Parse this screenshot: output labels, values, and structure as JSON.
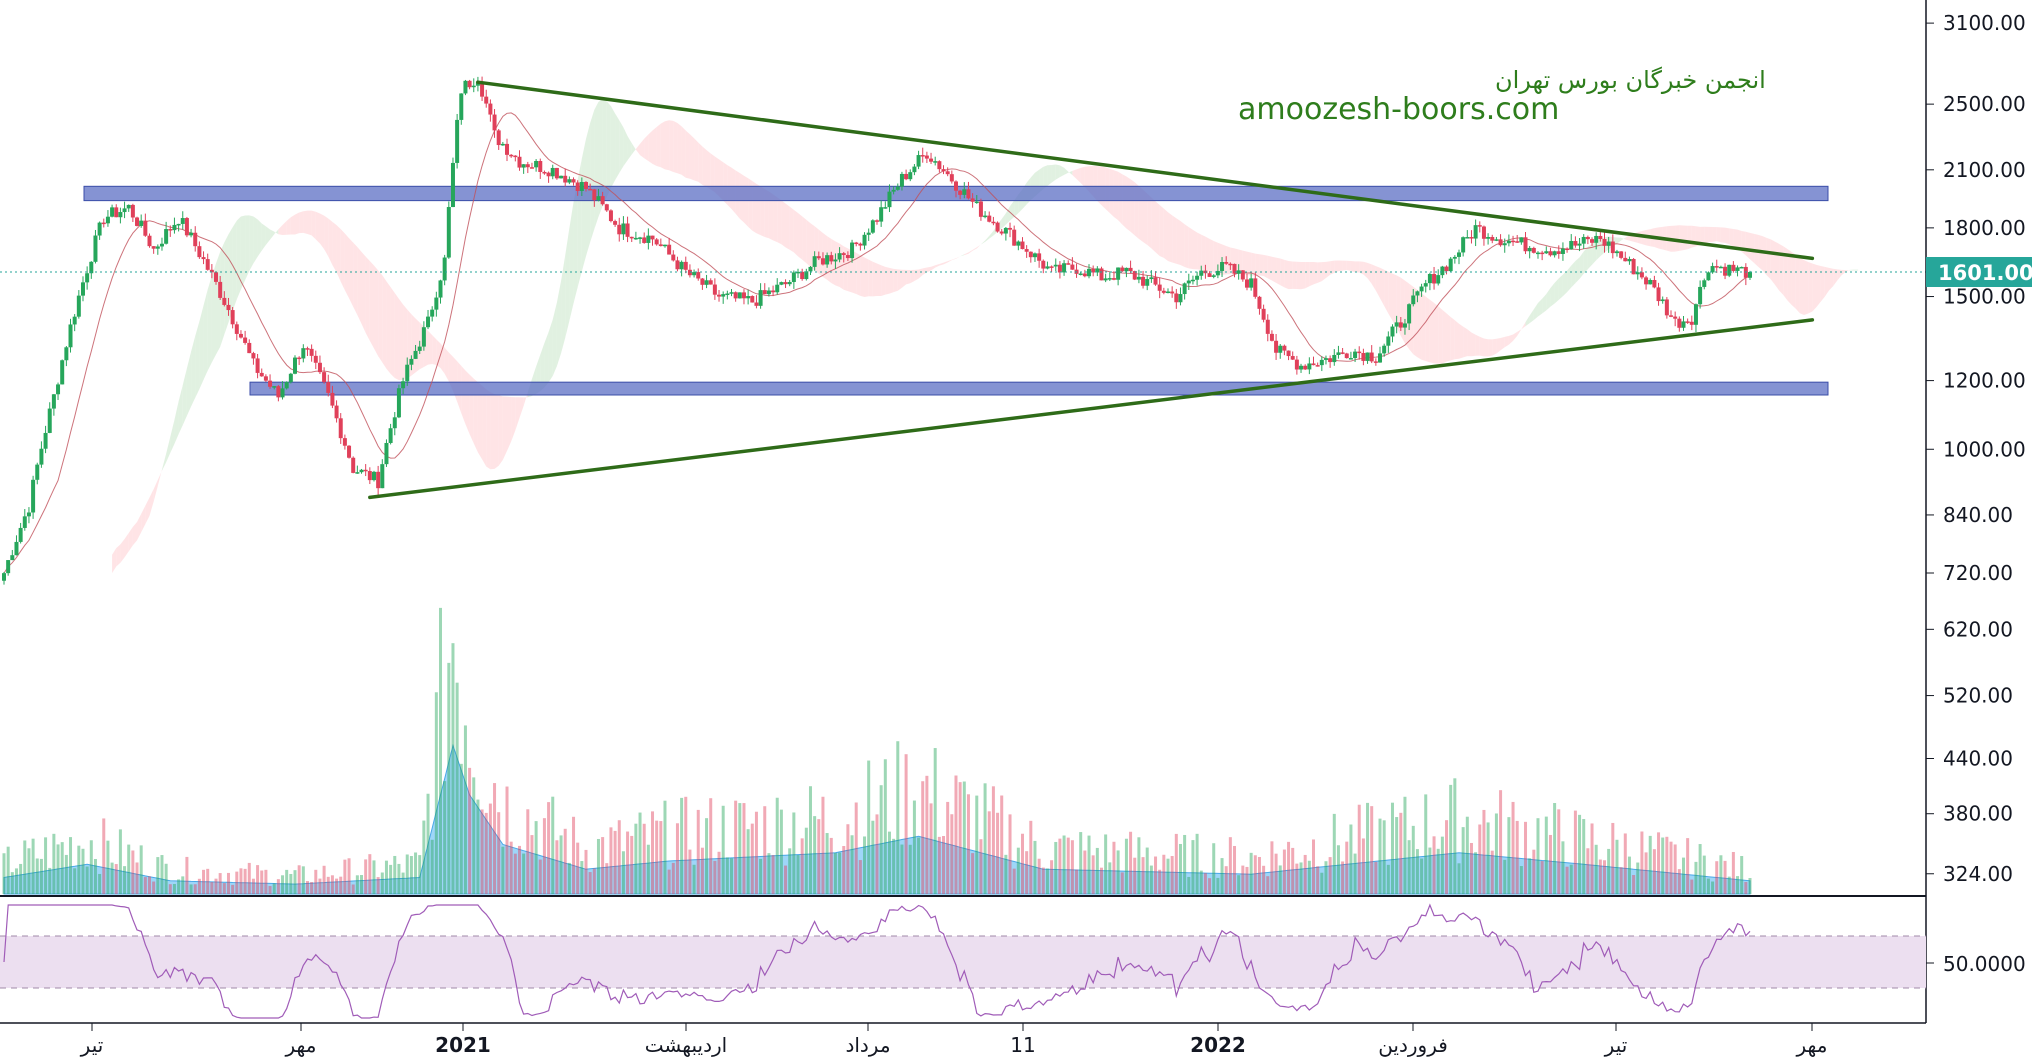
{
  "watermark": {
    "line1": "انجمن خبرگان بورس تهران",
    "line2": "amoozesh-boors.com",
    "color": "#2e7d1c"
  },
  "chart_data": {
    "type": "candlestick",
    "price_scale": "log",
    "y_ticks": [
      3100,
      2500,
      2100,
      1800,
      1500,
      1200,
      1000,
      840,
      720,
      620,
      520,
      440,
      380,
      324
    ],
    "y_tick_labels": [
      "3100.00",
      "2500.00",
      "2100.00",
      "1800.00",
      "1500.00",
      "1200.00",
      "1000.00",
      "840.00",
      "720.00",
      "620.00",
      "520.00",
      "440.00",
      "380.00",
      "324.00"
    ],
    "last_price": 1601,
    "last_price_label": "1601.00",
    "x_ticks": [
      {
        "label": "تیر",
        "year": false
      },
      {
        "label": "مهر",
        "year": false
      },
      {
        "label": "2021",
        "year": true
      },
      {
        "label": "اردیبهشت",
        "year": false
      },
      {
        "label": "مرداد",
        "year": false
      },
      {
        "label": "11",
        "year": false
      },
      {
        "label": "2022",
        "year": true
      },
      {
        "label": "فروردین",
        "year": false
      },
      {
        "label": "تیر",
        "year": false
      },
      {
        "label": "مهر",
        "year": false
      }
    ],
    "price_path_keypoints": [
      {
        "i": 0,
        "p": 720
      },
      {
        "i": 6,
        "p": 860
      },
      {
        "i": 12,
        "p": 1150
      },
      {
        "i": 18,
        "p": 1500
      },
      {
        "i": 24,
        "p": 1850
      },
      {
        "i": 30,
        "p": 1900
      },
      {
        "i": 36,
        "p": 1700
      },
      {
        "i": 42,
        "p": 1850
      },
      {
        "i": 48,
        "p": 1650
      },
      {
        "i": 54,
        "p": 1450
      },
      {
        "i": 60,
        "p": 1250
      },
      {
        "i": 66,
        "p": 1150
      },
      {
        "i": 72,
        "p": 1320
      },
      {
        "i": 78,
        "p": 1150
      },
      {
        "i": 84,
        "p": 950
      },
      {
        "i": 90,
        "p": 920
      },
      {
        "i": 96,
        "p": 1200
      },
      {
        "i": 102,
        "p": 1400
      },
      {
        "i": 106,
        "p": 1650
      },
      {
        "i": 110,
        "p": 2600
      },
      {
        "i": 114,
        "p": 2700
      },
      {
        "i": 118,
        "p": 2300
      },
      {
        "i": 124,
        "p": 2150
      },
      {
        "i": 132,
        "p": 2100
      },
      {
        "i": 140,
        "p": 2000
      },
      {
        "i": 148,
        "p": 1800
      },
      {
        "i": 156,
        "p": 1750
      },
      {
        "i": 164,
        "p": 1600
      },
      {
        "i": 172,
        "p": 1500
      },
      {
        "i": 180,
        "p": 1480
      },
      {
        "i": 188,
        "p": 1550
      },
      {
        "i": 196,
        "p": 1650
      },
      {
        "i": 204,
        "p": 1700
      },
      {
        "i": 210,
        "p": 1850
      },
      {
        "i": 216,
        "p": 2050
      },
      {
        "i": 222,
        "p": 2200
      },
      {
        "i": 228,
        "p": 2050
      },
      {
        "i": 234,
        "p": 1900
      },
      {
        "i": 240,
        "p": 1800
      },
      {
        "i": 246,
        "p": 1700
      },
      {
        "i": 252,
        "p": 1600
      },
      {
        "i": 258,
        "p": 1620
      },
      {
        "i": 264,
        "p": 1580
      },
      {
        "i": 270,
        "p": 1600
      },
      {
        "i": 276,
        "p": 1550
      },
      {
        "i": 282,
        "p": 1500
      },
      {
        "i": 288,
        "p": 1600
      },
      {
        "i": 294,
        "p": 1620
      },
      {
        "i": 300,
        "p": 1550
      },
      {
        "i": 306,
        "p": 1300
      },
      {
        "i": 312,
        "p": 1250
      },
      {
        "i": 318,
        "p": 1270
      },
      {
        "i": 324,
        "p": 1300
      },
      {
        "i": 330,
        "p": 1280
      },
      {
        "i": 336,
        "p": 1400
      },
      {
        "i": 342,
        "p": 1550
      },
      {
        "i": 348,
        "p": 1650
      },
      {
        "i": 354,
        "p": 1800
      },
      {
        "i": 360,
        "p": 1750
      },
      {
        "i": 366,
        "p": 1720
      },
      {
        "i": 372,
        "p": 1700
      },
      {
        "i": 378,
        "p": 1720
      },
      {
        "i": 384,
        "p": 1750
      },
      {
        "i": 390,
        "p": 1650
      },
      {
        "i": 396,
        "p": 1550
      },
      {
        "i": 402,
        "p": 1400
      },
      {
        "i": 406,
        "p": 1420
      },
      {
        "i": 410,
        "p": 1630
      },
      {
        "i": 416,
        "p": 1610
      },
      {
        "i": 420,
        "p": 1601
      }
    ],
    "trendlines": [
      {
        "name": "upper",
        "from": {
          "i": 114,
          "p": 2650
        },
        "to": {
          "i": 435,
          "p": 1660
        },
        "color": "#2e6b18"
      },
      {
        "name": "lower",
        "from": {
          "i": 88,
          "p": 880
        },
        "to": {
          "i": 435,
          "p": 1410
        },
        "color": "#2e6b18"
      }
    ],
    "support_resistance_zones": [
      {
        "name": "resistance",
        "low": 1935,
        "high": 2010,
        "color": "#5c6fc4"
      },
      {
        "name": "support",
        "low": 1155,
        "high": 1195,
        "color": "#5c6fc4"
      }
    ],
    "colors": {
      "up": "#26a65b",
      "down": "#e0405a",
      "ichimoku_up": "#c8e6c9",
      "ichimoku_down": "#ffcdd2",
      "rsi_band": "#ecdff0",
      "rsi_line": "#a05cb8",
      "volume_ma": "#7ec8f5",
      "price_tag": "#26a69a"
    },
    "rsi": {
      "upper": 70,
      "lower": 30,
      "label": "50.0000"
    },
    "volume_path_keypoints": [
      {
        "i": 0,
        "v": 0.1
      },
      {
        "i": 20,
        "v": 0.18
      },
      {
        "i": 40,
        "v": 0.08
      },
      {
        "i": 70,
        "v": 0.06
      },
      {
        "i": 100,
        "v": 0.1
      },
      {
        "i": 108,
        "v": 0.9
      },
      {
        "i": 112,
        "v": 0.6
      },
      {
        "i": 120,
        "v": 0.3
      },
      {
        "i": 140,
        "v": 0.15
      },
      {
        "i": 160,
        "v": 0.2
      },
      {
        "i": 200,
        "v": 0.25
      },
      {
        "i": 220,
        "v": 0.35
      },
      {
        "i": 250,
        "v": 0.15
      },
      {
        "i": 300,
        "v": 0.12
      },
      {
        "i": 350,
        "v": 0.25
      },
      {
        "i": 380,
        "v": 0.18
      },
      {
        "i": 420,
        "v": 0.08
      }
    ]
  }
}
